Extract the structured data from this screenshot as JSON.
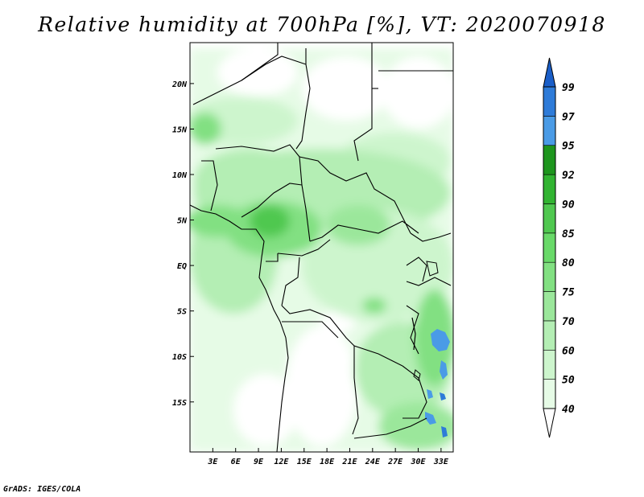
{
  "title": "Relative humidity at 700hPa [%], VT: 2020070918",
  "credit": "GrADS: IGES/COLA",
  "map": {
    "lon_range": [
      0,
      34.6
    ],
    "lat_range": [
      -20.5,
      24.5
    ],
    "lon_ticks": [
      "3E",
      "6E",
      "9E",
      "12E",
      "15E",
      "18E",
      "21E",
      "24E",
      "27E",
      "30E",
      "33E"
    ],
    "lon_tick_values": [
      3,
      6,
      9,
      12,
      15,
      18,
      21,
      24,
      27,
      30,
      33
    ],
    "lat_ticks": [
      "20N",
      "15N",
      "10N",
      "5N",
      "EQ",
      "5S",
      "10S",
      "15S"
    ],
    "lat_tick_values": [
      20,
      15,
      10,
      5,
      0,
      -5,
      -10,
      -15
    ]
  },
  "colorbar": {
    "levels": [
      "40",
      "50",
      "60",
      "70",
      "75",
      "80",
      "85",
      "90",
      "92",
      "95",
      "97",
      "99"
    ],
    "colors": [
      "#ffffff",
      "#e6fbe6",
      "#cdf5cd",
      "#b4eeb4",
      "#9be79b",
      "#82e082",
      "#69d969",
      "#50c850",
      "#32b432",
      "#1e961e",
      "#4a9be6",
      "#2e7bd8",
      "#1a5ec8"
    ]
  }
}
